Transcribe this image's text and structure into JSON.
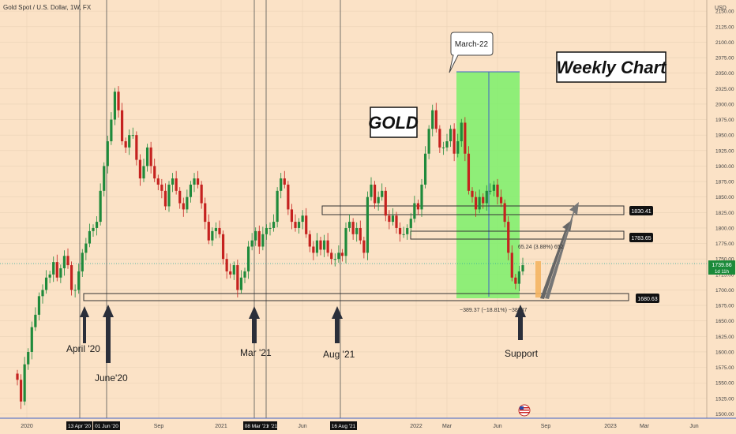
{
  "header": {
    "symbol_title": "Gold Spot / U.S. Dollar, 1W, FX"
  },
  "labels": {
    "gold": "GOLD",
    "weekly_chart": "Weekly Chart",
    "march22": "March-22",
    "april20": "April '20",
    "june20": "June'20",
    "mar21": "Mar '21",
    "aug21": "Aug '21",
    "support": "Support",
    "measure_up": "65.24 (3.88%) 652",
    "measure_down": "−389.37 (−18.81%) −38937"
  },
  "price_tags": {
    "current": "1739.86",
    "countdown": "1d 11h",
    "r1": "1830.41",
    "r2": "1783.65",
    "s1": "1680.63"
  },
  "date_tags": [
    "13 Apr '20",
    "01 Jun '20",
    "08 Mar '21",
    "r '21",
    "16 Aug '21"
  ],
  "chart_data": {
    "type": "candlestick",
    "currency_label": "USD",
    "y_ticks": [
      2150,
      2125,
      2100,
      2075,
      2050,
      2025,
      2000,
      1975,
      1950,
      1925,
      1900,
      1875,
      1850,
      1825,
      1800,
      1775,
      1750,
      1725,
      1700,
      1675,
      1650,
      1625,
      1600,
      1575,
      1550,
      1525,
      1500
    ],
    "ylim": [
      1493,
      2168
    ],
    "x_ticks": [
      "2020",
      "Sep",
      "2021",
      "Jun",
      "2022",
      "Mar",
      "Jun",
      "Sep",
      "2023",
      "Mar",
      "Jun"
    ],
    "levels": {
      "resistance_1": 1830.41,
      "resistance_2": 1783.65,
      "support": 1680.63,
      "current": 1739.86
    },
    "closes": [
      1555,
      1520,
      1580,
      1600,
      1640,
      1660,
      1690,
      1700,
      1720,
      1725,
      1745,
      1720,
      1735,
      1755,
      1740,
      1700,
      1700,
      1730,
      1760,
      1775,
      1795,
      1800,
      1810,
      1860,
      1900,
      1940,
      1975,
      2020,
      1990,
      1940,
      1930,
      1950,
      1950,
      1910,
      1880,
      1900,
      1930,
      1900,
      1880,
      1870,
      1860,
      1835,
      1870,
      1880,
      1860,
      1840,
      1830,
      1850,
      1870,
      1880,
      1870,
      1840,
      1810,
      1780,
      1795,
      1800,
      1790,
      1750,
      1730,
      1725,
      1740,
      1700,
      1720,
      1730,
      1770,
      1780,
      1795,
      1770,
      1790,
      1800,
      1800,
      1810,
      1860,
      1880,
      1870,
      1830,
      1810,
      1800,
      1810,
      1820,
      1790,
      1770,
      1760,
      1780,
      1765,
      1780,
      1760,
      1750,
      1750,
      1760,
      1755,
      1800,
      1810,
      1790,
      1800,
      1780,
      1760,
      1850,
      1870,
      1840,
      1850,
      1860,
      1820,
      1810,
      1820,
      1800,
      1790,
      1790,
      1800,
      1815,
      1840,
      1830,
      1870,
      1920,
      1960,
      1990,
      1960,
      1930,
      1930,
      1940,
      1960,
      1920,
      1940,
      1970,
      1920,
      1860,
      1850,
      1830,
      1850,
      1840,
      1860,
      1860,
      1870,
      1850,
      1840,
      1810,
      1760,
      1720,
      1710,
      1730,
      1740
    ]
  }
}
